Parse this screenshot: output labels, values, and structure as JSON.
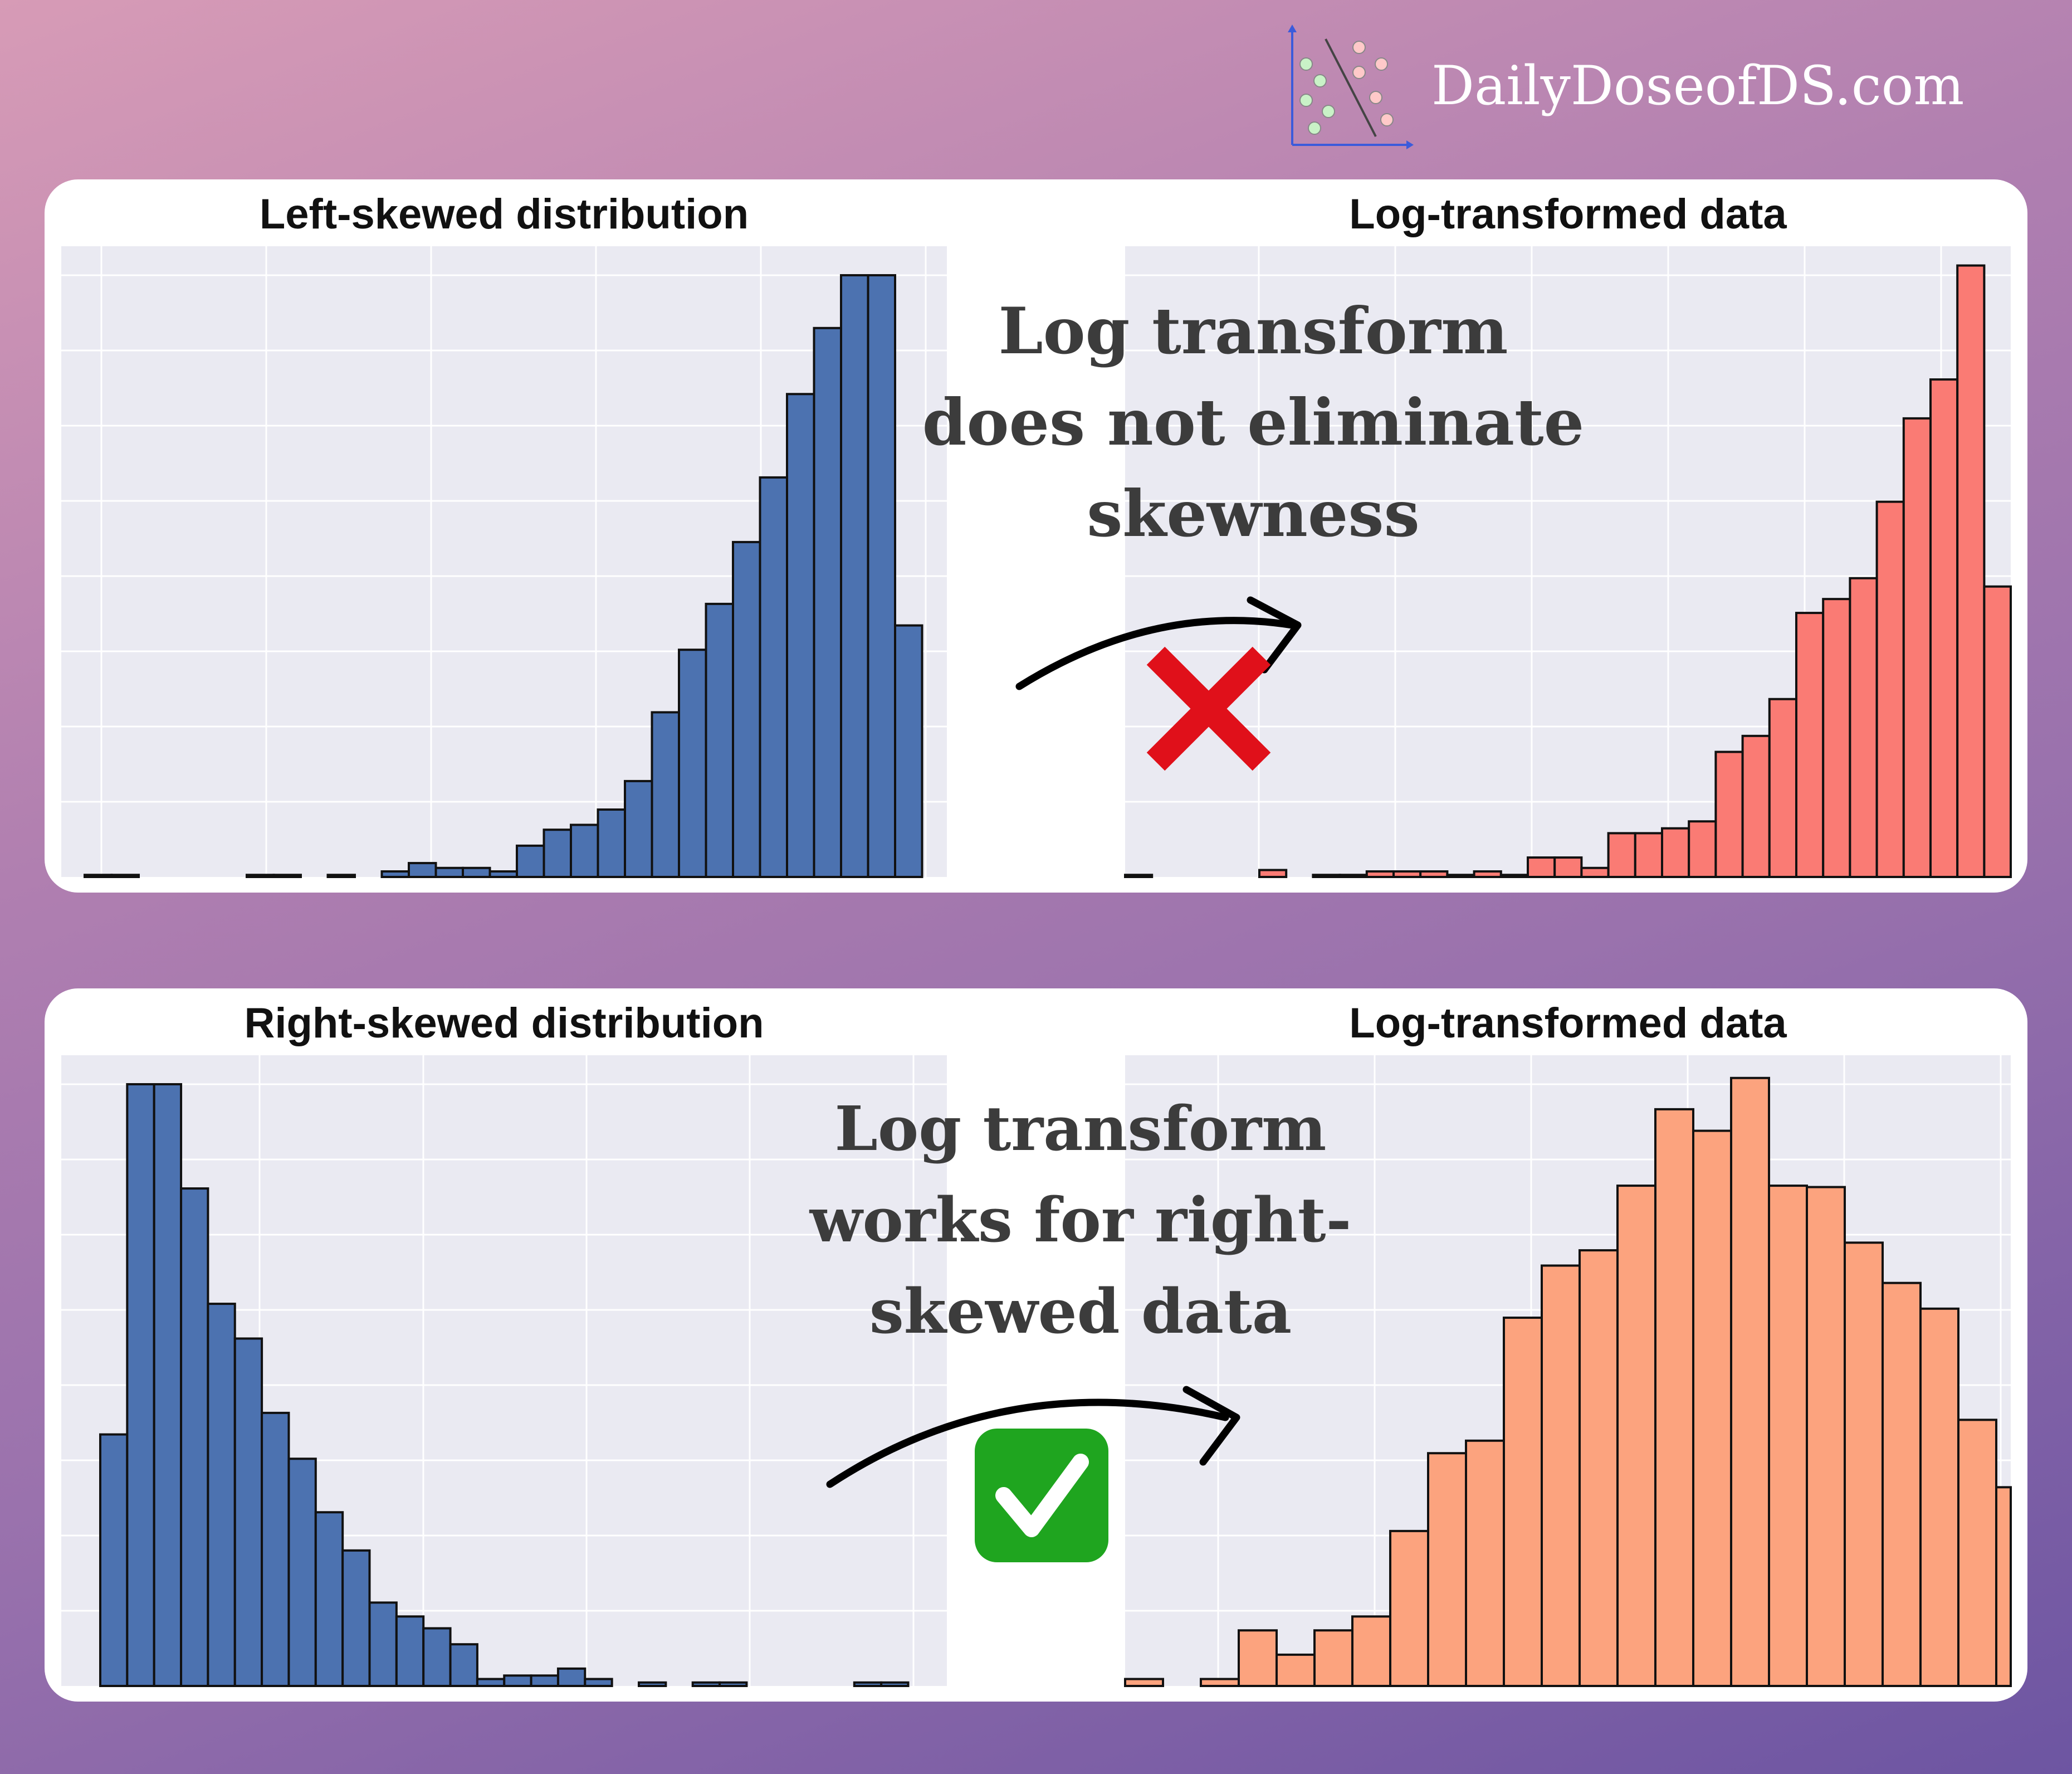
{
  "brand": {
    "name": "DailyDoseofDS.com",
    "logo_icon": "scatter-classifier-logo-icon"
  },
  "panels": [
    {
      "id": "top",
      "note": "Log transform\ndoes not eliminate\nskewness",
      "verdict_icon": "cross-mark-icon",
      "verdict_color": "#e0101a"
    },
    {
      "id": "bottom",
      "note": "Log transform\nworks for right-\nskewed data",
      "verdict_icon": "check-mark-icon",
      "verdict_color": "#1fa51f"
    }
  ],
  "chart_data": [
    {
      "type": "bar",
      "title": "Left-skewed distribution",
      "color": "#4c72b0",
      "xlabel": "",
      "ylabel": "",
      "grid": true,
      "values": [
        0.3,
        0.3,
        0,
        0,
        0,
        0,
        0.3,
        0.3,
        0,
        0.3,
        0,
        0.8,
        2,
        1.3,
        1.3,
        0.8,
        4.5,
        6.8,
        7.5,
        9.7,
        13.8,
        23.7,
        32.7,
        39.3,
        48.2,
        57.5,
        69.5,
        79,
        86.6,
        86.6,
        36.2
      ]
    },
    {
      "type": "bar",
      "title": "Log-transformed data",
      "color": "#fa7b74",
      "xlabel": "",
      "ylabel": "",
      "grid": true,
      "values": [
        0.3,
        0,
        0,
        0,
        0,
        1,
        0,
        0.3,
        0.3,
        0.8,
        0.8,
        0.8,
        0.3,
        0.8,
        0.3,
        2.8,
        2.8,
        1.3,
        6.3,
        6.3,
        7,
        8,
        18,
        20.3,
        25.6,
        38,
        40,
        43,
        54,
        66,
        71.6,
        88,
        41.8
      ]
    },
    {
      "type": "bar",
      "title": "Right-skewed distribution",
      "color": "#4c72b0",
      "xlabel": "",
      "ylabel": "",
      "grid": true,
      "values": [
        36.2,
        86.6,
        86.6,
        71.6,
        55,
        50,
        39.3,
        32.7,
        25,
        19.5,
        12,
        10,
        8.3,
        6,
        1,
        1.5,
        1.5,
        2.5,
        1,
        0,
        0.5,
        0,
        0.5,
        0.5,
        0,
        0,
        0,
        0,
        0.5,
        0.5
      ]
    },
    {
      "type": "bar",
      "title": "Log-transformed data",
      "color": "#fca37e",
      "xlabel": "",
      "ylabel": "",
      "grid": true,
      "values": [
        1,
        0,
        1,
        8,
        4.5,
        8,
        10,
        22.3,
        33.5,
        35.3,
        53,
        60.5,
        62.7,
        72,
        83,
        79.9,
        87.5,
        72,
        71.8,
        63.8,
        58,
        54.3,
        38.3,
        28.6,
        11.2,
        8.8
      ]
    }
  ]
}
